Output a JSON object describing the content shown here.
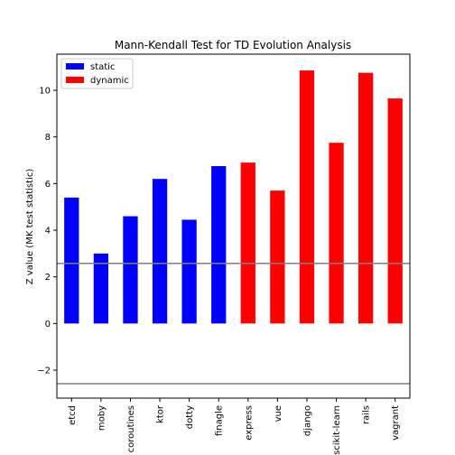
{
  "chart_data": {
    "type": "bar",
    "title": "Mann-Kendall Test for TD Evolution Analysis",
    "xlabel": "",
    "ylabel": "Z value (MK test statistic)",
    "ylim": [
      -3.2,
      11.55
    ],
    "yticks": [
      -2,
      0,
      2,
      4,
      6,
      8,
      10
    ],
    "ytick_labels": [
      "−2",
      "0",
      "2",
      "4",
      "6",
      "8",
      "10"
    ],
    "categories": [
      "etcd",
      "moby",
      "coroutines",
      "ktor",
      "dotty",
      "finagle",
      "express",
      "vue",
      "django",
      "scikit-learn",
      "rails",
      "vagrant"
    ],
    "values": [
      5.4,
      3.0,
      4.6,
      6.2,
      4.45,
      6.75,
      6.9,
      5.7,
      10.85,
      7.75,
      10.75,
      9.65
    ],
    "groups": [
      "static",
      "static",
      "static",
      "static",
      "static",
      "static",
      "dynamic",
      "dynamic",
      "dynamic",
      "dynamic",
      "dynamic",
      "dynamic"
    ],
    "legend": [
      {
        "name": "static",
        "color": "#0000ff"
      },
      {
        "name": "dynamic",
        "color": "#ff0000"
      }
    ],
    "legend_position": "top-left",
    "reference_lines": [
      2.58,
      -2.58
    ],
    "reference_line_color": "#808080",
    "grid": false
  }
}
